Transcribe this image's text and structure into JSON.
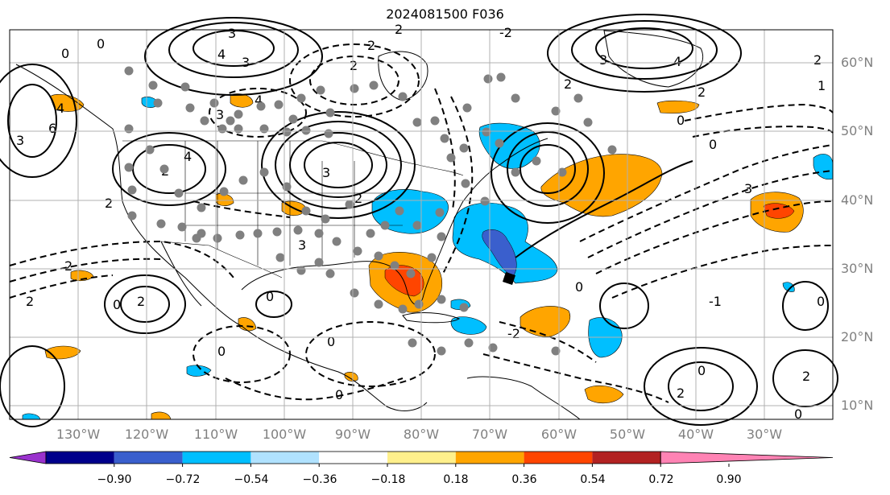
{
  "title": "2024081500 F036",
  "map": {
    "lon_labels": [
      "130°W",
      "120°W",
      "110°W",
      "100°W",
      "90°W",
      "80°W",
      "70°W",
      "60°W",
      "50°W",
      "40°W",
      "30°W"
    ],
    "lat_labels": [
      "60°N",
      "50°N",
      "40°N",
      "30°N",
      "20°N",
      "10°N"
    ],
    "contour_labels": [
      "2",
      "4",
      "3",
      "-1",
      "-2",
      "0",
      "6",
      "1"
    ],
    "label_color": "#808080"
  },
  "colorbar": {
    "ticks": [
      "−0.90",
      "−0.72",
      "−0.54",
      "−0.36",
      "−0.18",
      "0.18",
      "0.36",
      "0.54",
      "0.72",
      "0.90"
    ],
    "colors": [
      "#9a32cd",
      "#00008b",
      "#3a5fcd",
      "#00bfff",
      "#b0e2ff",
      "#ffffff",
      "#fff08c",
      "#ffa500",
      "#ff4500",
      "#b22222",
      "#ff83b4"
    ]
  }
}
